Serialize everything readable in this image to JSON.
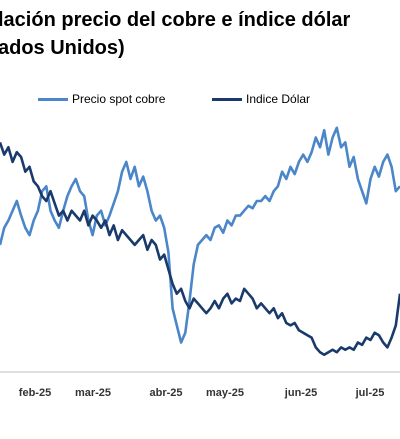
{
  "title_line1": "lación precio del cobre e índice dólar",
  "title_line2": "ados Unidos)",
  "chart_data": {
    "type": "line",
    "x_tick_labels": [
      "feb-25",
      "mar-25",
      "abr-25",
      "may-25",
      "jun-25",
      "jul-25"
    ],
    "legend_position": "top",
    "grid": false,
    "series": [
      {
        "name": "Precio spot cobre",
        "color": "#4a86c8",
        "y_rel": [
          0.48,
          0.55,
          0.58,
          0.62,
          0.66,
          0.6,
          0.55,
          0.52,
          0.58,
          0.62,
          0.7,
          0.72,
          0.62,
          0.58,
          0.55,
          0.62,
          0.68,
          0.72,
          0.75,
          0.7,
          0.68,
          0.58,
          0.52,
          0.6,
          0.62,
          0.56,
          0.6,
          0.65,
          0.7,
          0.78,
          0.82,
          0.75,
          0.8,
          0.72,
          0.76,
          0.7,
          0.62,
          0.58,
          0.6,
          0.55,
          0.45,
          0.22,
          0.15,
          0.08,
          0.12,
          0.25,
          0.4,
          0.48,
          0.5,
          0.52,
          0.5,
          0.55,
          0.56,
          0.53,
          0.58,
          0.56,
          0.6,
          0.6,
          0.62,
          0.64,
          0.63,
          0.66,
          0.66,
          0.68,
          0.66,
          0.7,
          0.72,
          0.78,
          0.75,
          0.8,
          0.77,
          0.82,
          0.85,
          0.82,
          0.86,
          0.92,
          0.88,
          0.95,
          0.85,
          0.92,
          0.96,
          0.88,
          0.9,
          0.8,
          0.84,
          0.75,
          0.7,
          0.65,
          0.75,
          0.8,
          0.76,
          0.82,
          0.85,
          0.8,
          0.7,
          0.72
        ]
      },
      {
        "name": "Indice Dólar",
        "color": "#1a3a6b",
        "y_rel": [
          0.9,
          0.85,
          0.88,
          0.82,
          0.86,
          0.84,
          0.78,
          0.8,
          0.74,
          0.72,
          0.68,
          0.66,
          0.7,
          0.65,
          0.6,
          0.62,
          0.58,
          0.62,
          0.6,
          0.58,
          0.62,
          0.56,
          0.6,
          0.58,
          0.55,
          0.58,
          0.52,
          0.56,
          0.5,
          0.54,
          0.52,
          0.5,
          0.48,
          0.5,
          0.52,
          0.46,
          0.5,
          0.48,
          0.42,
          0.44,
          0.38,
          0.32,
          0.28,
          0.3,
          0.25,
          0.22,
          0.26,
          0.24,
          0.22,
          0.2,
          0.22,
          0.25,
          0.22,
          0.26,
          0.28,
          0.24,
          0.26,
          0.25,
          0.3,
          0.28,
          0.26,
          0.22,
          0.24,
          0.22,
          0.2,
          0.22,
          0.18,
          0.2,
          0.16,
          0.15,
          0.16,
          0.13,
          0.12,
          0.11,
          0.1,
          0.06,
          0.04,
          0.03,
          0.04,
          0.05,
          0.04,
          0.06,
          0.05,
          0.06,
          0.05,
          0.08,
          0.07,
          0.1,
          0.09,
          0.12,
          0.11,
          0.08,
          0.06,
          0.1,
          0.15,
          0.28
        ]
      }
    ]
  }
}
